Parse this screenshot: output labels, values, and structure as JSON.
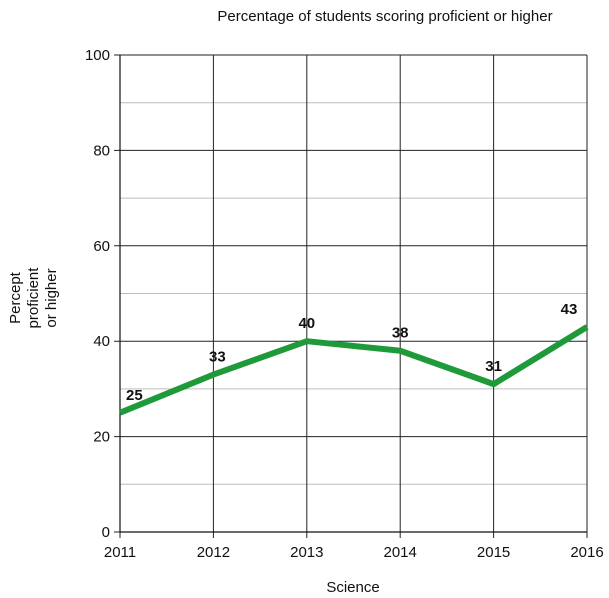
{
  "chart_data": {
    "type": "line",
    "title": "Percentage of students scoring proficient or higher",
    "xlabel": "Science",
    "ylabel_lines": [
      "Percept",
      "proficient",
      "or higher"
    ],
    "x": [
      "2011",
      "2012",
      "2013",
      "2014",
      "2015",
      "2016"
    ],
    "series": [
      {
        "values": [
          25,
          33,
          40,
          38,
          31,
          43
        ],
        "color": "#1f9a3a"
      }
    ],
    "data_labels": [
      "25",
      "33",
      "40",
      "38",
      "31",
      "43"
    ],
    "ylim": [
      0,
      100
    ],
    "yticks": [
      0,
      20,
      40,
      60,
      80,
      100
    ],
    "yticks_labels": [
      "0",
      "20",
      "40",
      "60",
      "80",
      "100"
    ],
    "minor_grid_step": 10,
    "grid": true,
    "legend": "none"
  }
}
